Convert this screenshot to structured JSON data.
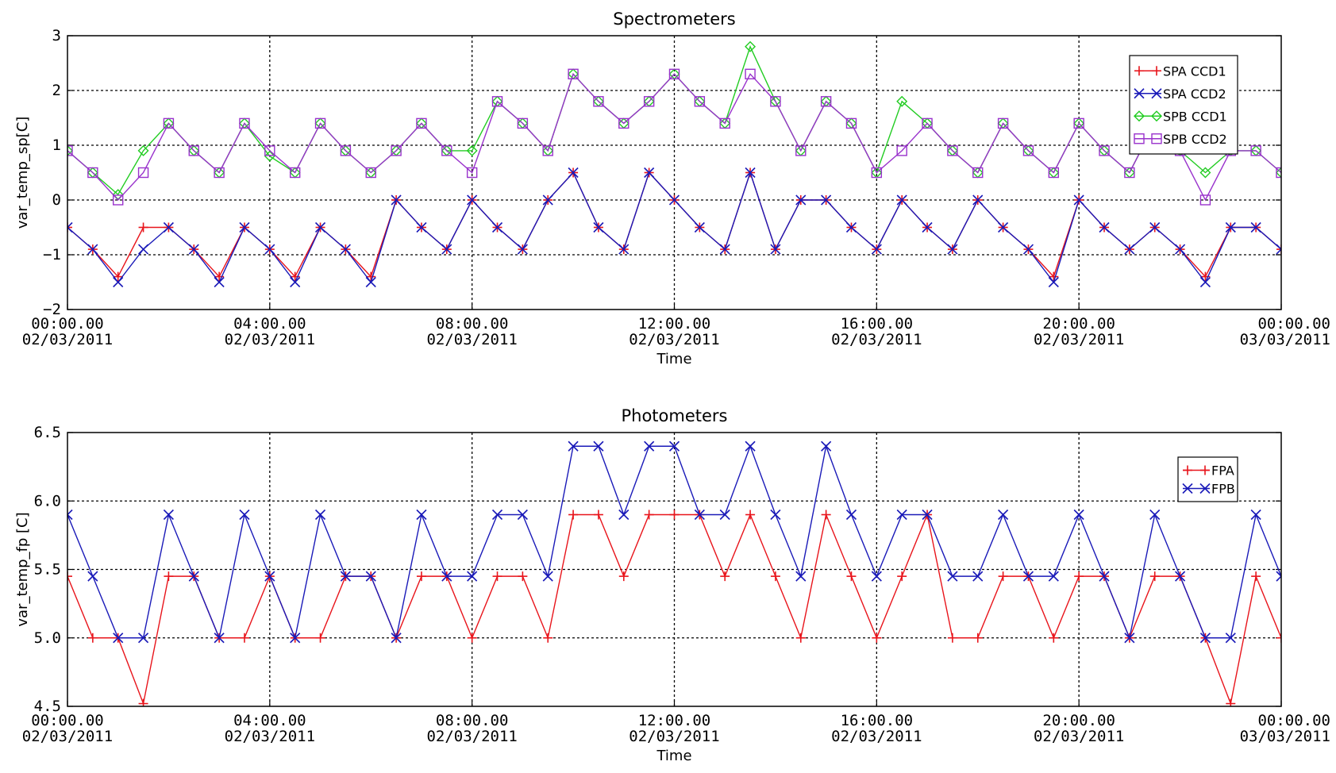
{
  "chart_data": [
    {
      "type": "line",
      "title": "Spectrometers",
      "xlabel": "Time",
      "ylabel": "var_temp_sp[C]",
      "ylim": [
        -2,
        3
      ],
      "yticks": [
        "3",
        "2",
        "1",
        "0",
        "−1",
        "−2"
      ],
      "xticks": [
        {
          "time": "00:00.00",
          "date": "02/03/2011"
        },
        {
          "time": "04:00.00",
          "date": "02/03/2011"
        },
        {
          "time": "08:00.00",
          "date": "02/03/2011"
        },
        {
          "time": "12:00.00",
          "date": "02/03/2011"
        },
        {
          "time": "16:00.00",
          "date": "02/03/2011"
        },
        {
          "time": "20:00.00",
          "date": "02/03/2011"
        },
        {
          "time": "00:00.00",
          "date": "03/03/2011"
        }
      ],
      "xrange_hours": [
        0,
        24
      ],
      "grid": true,
      "legend_position": "top-right",
      "x": [
        0,
        0.5,
        1,
        1.5,
        2,
        2.5,
        3,
        3.5,
        4,
        4.5,
        5,
        5.5,
        6,
        6.5,
        7,
        7.5,
        8,
        8.5,
        9,
        9.5,
        10,
        10.5,
        11,
        11.5,
        12,
        12.5,
        13,
        13.5,
        14,
        14.5,
        15,
        15.5,
        16,
        16.5,
        17,
        17.5,
        18,
        18.5,
        19,
        19.5,
        20,
        20.5,
        21,
        21.5,
        22,
        22.5,
        23,
        23.5,
        24
      ],
      "series": [
        {
          "name": "SPA CCD1",
          "color": "#e8141b",
          "marker": "plus",
          "values": [
            -0.5,
            -0.9,
            -1.4,
            -0.5,
            -0.5,
            -0.9,
            -1.4,
            -0.5,
            -0.9,
            -1.4,
            -0.5,
            -0.9,
            -1.4,
            0,
            -0.5,
            -0.9,
            0,
            -0.5,
            -0.9,
            0,
            0.5,
            -0.5,
            -0.9,
            0.5,
            0,
            -0.5,
            -0.9,
            0.5,
            -0.9,
            0,
            0,
            -0.5,
            -0.9,
            0,
            -0.5,
            -0.9,
            0,
            -0.5,
            -0.9,
            -1.4,
            0,
            -0.5,
            -0.9,
            -0.5,
            -0.9,
            -1.4,
            -0.5,
            -0.5,
            -0.9
          ]
        },
        {
          "name": "SPA CCD2",
          "color": "#1a1ab8",
          "marker": "x",
          "values": [
            -0.5,
            -0.9,
            -1.5,
            -0.9,
            -0.5,
            -0.9,
            -1.5,
            -0.5,
            -0.9,
            -1.5,
            -0.5,
            -0.9,
            -1.5,
            0,
            -0.5,
            -0.9,
            0,
            -0.5,
            -0.9,
            0,
            0.5,
            -0.5,
            -0.9,
            0.5,
            0,
            -0.5,
            -0.9,
            0.5,
            -0.9,
            0,
            0,
            -0.5,
            -0.9,
            0,
            -0.5,
            -0.9,
            0,
            -0.5,
            -0.9,
            -1.5,
            0,
            -0.5,
            -0.9,
            -0.5,
            -0.9,
            -1.5,
            -0.5,
            -0.5,
            -0.9
          ]
        },
        {
          "name": "SPB CCD1",
          "color": "#22cc22",
          "marker": "diamond",
          "values": [
            0.9,
            0.5,
            0.1,
            0.9,
            1.4,
            0.9,
            0.5,
            1.4,
            0.8,
            0.5,
            1.4,
            0.9,
            0.5,
            0.9,
            1.4,
            0.9,
            0.9,
            1.8,
            1.4,
            0.9,
            2.3,
            1.8,
            1.4,
            1.8,
            2.3,
            1.8,
            1.4,
            2.8,
            1.8,
            0.9,
            1.8,
            1.4,
            0.5,
            1.8,
            1.4,
            0.9,
            0.5,
            1.4,
            0.9,
            0.5,
            1.4,
            0.9,
            0.5,
            1.4,
            0.9,
            0.5,
            0.9,
            0.9,
            0.5
          ]
        },
        {
          "name": "SPB CCD2",
          "color": "#9932cc",
          "marker": "square",
          "values": [
            0.9,
            0.5,
            0,
            0.5,
            1.4,
            0.9,
            0.5,
            1.4,
            0.9,
            0.5,
            1.4,
            0.9,
            0.5,
            0.9,
            1.4,
            0.9,
            0.5,
            1.8,
            1.4,
            0.9,
            2.3,
            1.8,
            1.4,
            1.8,
            2.3,
            1.8,
            1.4,
            2.3,
            1.8,
            0.9,
            1.8,
            1.4,
            0.5,
            0.9,
            1.4,
            0.9,
            0.5,
            1.4,
            0.9,
            0.5,
            1.4,
            0.9,
            0.5,
            1.4,
            0.9,
            0,
            0.9,
            0.9,
            0.5
          ]
        }
      ]
    },
    {
      "type": "line",
      "title": "Photometers",
      "xlabel": "Time",
      "ylabel": "var_temp_fp [C]",
      "ylim": [
        4.5,
        6.5
      ],
      "yticks": [
        "6.5",
        "6.0",
        "5.5",
        "5.0",
        "4.5"
      ],
      "xticks": [
        {
          "time": "00:00.00",
          "date": "02/03/2011"
        },
        {
          "time": "04:00.00",
          "date": "02/03/2011"
        },
        {
          "time": "08:00.00",
          "date": "02/03/2011"
        },
        {
          "time": "12:00.00",
          "date": "02/03/2011"
        },
        {
          "time": "16:00.00",
          "date": "02/03/2011"
        },
        {
          "time": "20:00.00",
          "date": "02/03/2011"
        },
        {
          "time": "00:00.00",
          "date": "03/03/2011"
        }
      ],
      "xrange_hours": [
        0,
        24
      ],
      "grid": true,
      "legend_position": "top-right",
      "x": [
        0,
        0.5,
        1,
        1.5,
        2,
        2.5,
        3,
        3.5,
        4,
        4.5,
        5,
        5.5,
        6,
        6.5,
        7,
        7.5,
        8,
        8.5,
        9,
        9.5,
        10,
        10.5,
        11,
        11.5,
        12,
        12.5,
        13,
        13.5,
        14,
        14.5,
        15,
        15.5,
        16,
        16.5,
        17,
        17.5,
        18,
        18.5,
        19,
        19.5,
        20,
        20.5,
        21,
        21.5,
        22,
        22.5,
        23,
        23.5,
        24
      ],
      "series": [
        {
          "name": "FPA",
          "color": "#e8141b",
          "marker": "plus",
          "values": [
            5.45,
            5.0,
            5.0,
            4.52,
            5.45,
            5.45,
            5.0,
            5.0,
            5.45,
            5.0,
            5.0,
            5.45,
            5.45,
            5.0,
            5.45,
            5.45,
            5.0,
            5.45,
            5.45,
            5.0,
            5.9,
            5.9,
            5.45,
            5.9,
            5.9,
            5.9,
            5.45,
            5.9,
            5.45,
            5.0,
            5.9,
            5.45,
            5.0,
            5.45,
            5.9,
            5.0,
            5.0,
            5.45,
            5.45,
            5.0,
            5.45,
            5.45,
            5.0,
            5.45,
            5.45,
            5.0,
            4.52,
            5.45,
            5.0
          ]
        },
        {
          "name": "FPB",
          "color": "#1a1ab8",
          "marker": "x",
          "values": [
            5.9,
            5.45,
            5.0,
            5.0,
            5.9,
            5.45,
            5.0,
            5.9,
            5.45,
            5.0,
            5.9,
            5.45,
            5.45,
            5.0,
            5.9,
            5.45,
            5.45,
            5.9,
            5.9,
            5.45,
            6.4,
            6.4,
            5.9,
            6.4,
            6.4,
            5.9,
            5.9,
            6.4,
            5.9,
            5.45,
            6.4,
            5.9,
            5.45,
            5.9,
            5.9,
            5.45,
            5.45,
            5.9,
            5.45,
            5.45,
            5.9,
            5.45,
            5.0,
            5.9,
            5.45,
            5.0,
            5.0,
            5.9,
            5.45
          ]
        }
      ]
    }
  ]
}
